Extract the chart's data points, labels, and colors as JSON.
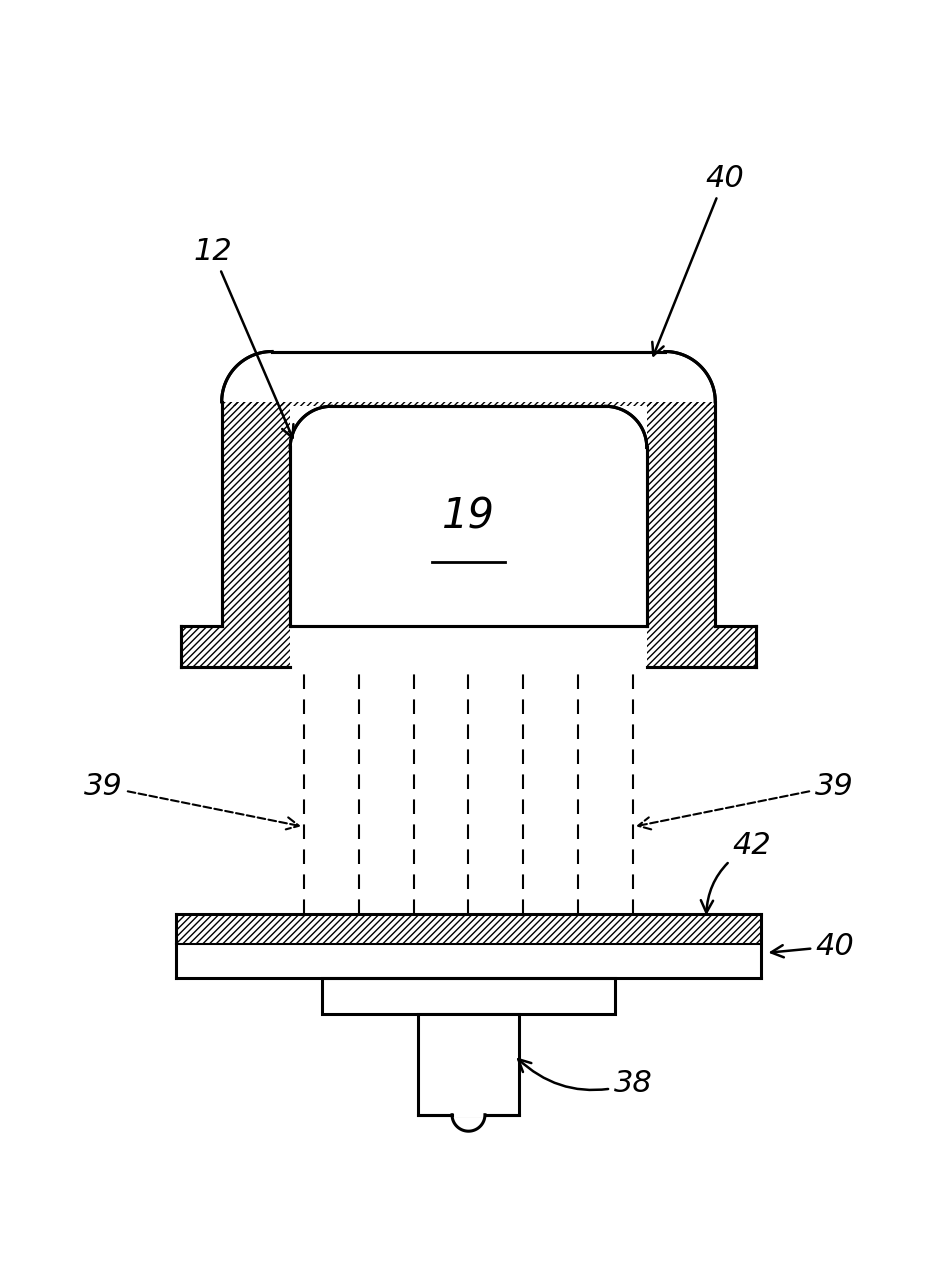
{
  "bg_color": "#ffffff",
  "line_color": "#000000",
  "label_12": "12",
  "label_19": "19",
  "label_39": "39",
  "label_40_top": "40",
  "label_40_side": "40",
  "label_42": "42",
  "label_38": "38",
  "fig_width": 9.37,
  "fig_height": 12.88,
  "dpi": 100
}
